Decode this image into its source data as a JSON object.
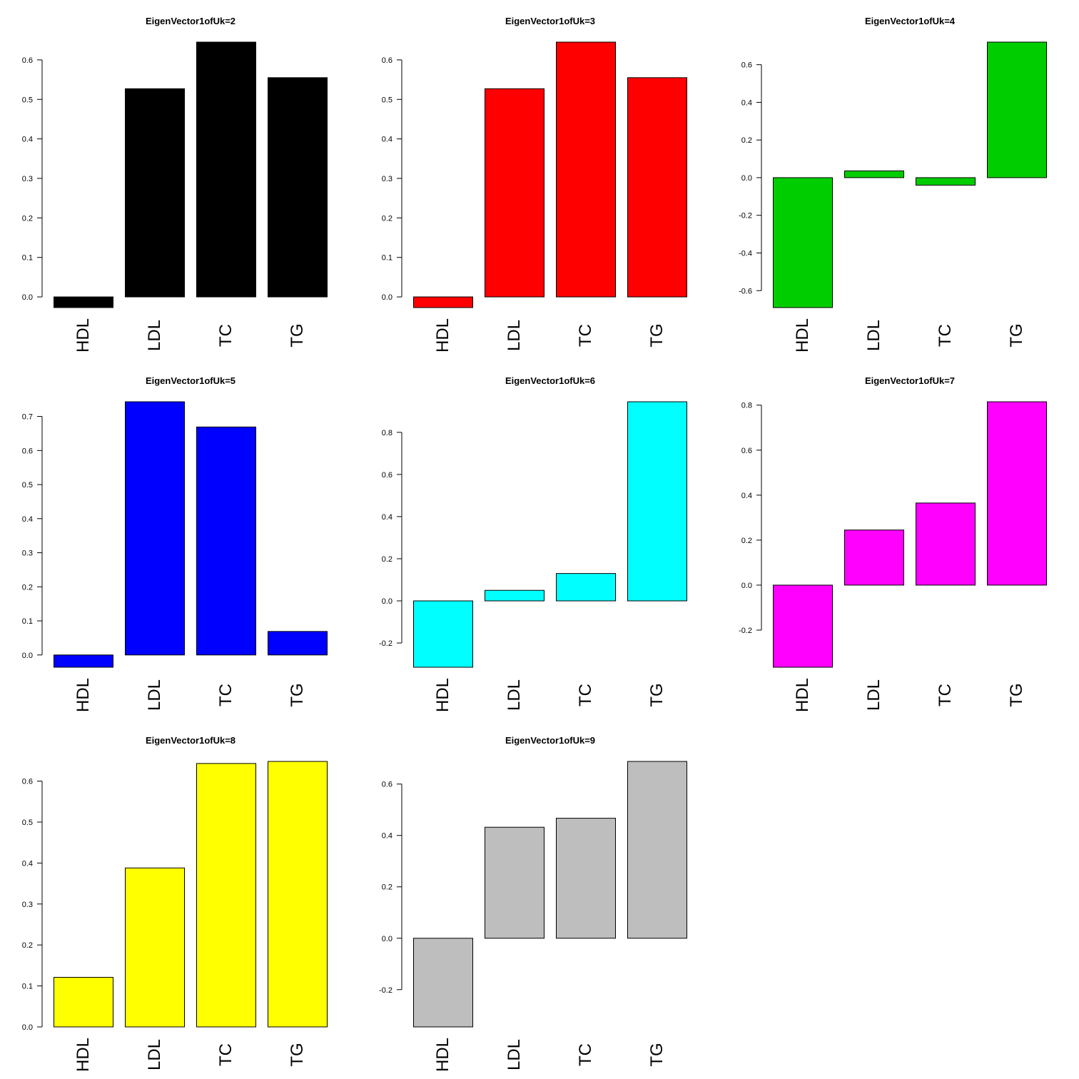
{
  "chart_data": [
    {
      "type": "bar",
      "title": "EigenVector1ofUk=2",
      "categories": [
        "HDL",
        "LDL",
        "TC",
        "TG"
      ],
      "values": [
        -0.027,
        0.527,
        0.645,
        0.555
      ],
      "ylim": [
        -0.027,
        0.645
      ],
      "yticks": [
        0.0,
        0.1,
        0.2,
        0.3,
        0.4,
        0.5,
        0.6
      ],
      "ytick_labels": [
        "0.0",
        "0.1",
        "0.2",
        "0.3",
        "0.4",
        "0.5",
        "0.6"
      ],
      "color": "#000000",
      "grid": false
    },
    {
      "type": "bar",
      "title": "EigenVector1ofUk=3",
      "categories": [
        "HDL",
        "LDL",
        "TC",
        "TG"
      ],
      "values": [
        -0.027,
        0.527,
        0.645,
        0.555
      ],
      "ylim": [
        -0.027,
        0.645
      ],
      "yticks": [
        0.0,
        0.1,
        0.2,
        0.3,
        0.4,
        0.5,
        0.6
      ],
      "ytick_labels": [
        "0.0",
        "0.1",
        "0.2",
        "0.3",
        "0.4",
        "0.5",
        "0.6"
      ],
      "color": "#ff0000",
      "grid": false
    },
    {
      "type": "bar",
      "title": "EigenVector1ofUk=4",
      "categories": [
        "HDL",
        "LDL",
        "TC",
        "TG"
      ],
      "values": [
        -0.69,
        0.036,
        -0.04,
        0.72
      ],
      "ylim": [
        -0.69,
        0.72
      ],
      "yticks": [
        -0.6,
        -0.4,
        -0.2,
        0.0,
        0.2,
        0.4,
        0.6
      ],
      "ytick_labels": [
        "-0.6",
        "-0.4",
        "-0.2",
        "0.0",
        "0.2",
        "0.4",
        "0.6"
      ],
      "color": "#00cd00",
      "grid": false
    },
    {
      "type": "bar",
      "title": "EigenVector1ofUk=5",
      "categories": [
        "HDL",
        "LDL",
        "TC",
        "TG"
      ],
      "values": [
        -0.036,
        0.743,
        0.669,
        0.069
      ],
      "ylim": [
        -0.036,
        0.743
      ],
      "yticks": [
        0.0,
        0.1,
        0.2,
        0.3,
        0.4,
        0.5,
        0.6,
        0.7
      ],
      "ytick_labels": [
        "0.0",
        "0.1",
        "0.2",
        "0.3",
        "0.4",
        "0.5",
        "0.6",
        "0.7"
      ],
      "color": "#0000ff",
      "grid": false
    },
    {
      "type": "bar",
      "title": "EigenVector1ofUk=6",
      "categories": [
        "HDL",
        "LDL",
        "TC",
        "TG"
      ],
      "values": [
        -0.315,
        0.05,
        0.13,
        0.945
      ],
      "ylim": [
        -0.315,
        0.945
      ],
      "yticks": [
        -0.2,
        0.0,
        0.2,
        0.4,
        0.6,
        0.8
      ],
      "ytick_labels": [
        "-0.2",
        "0.0",
        "0.2",
        "0.4",
        "0.6",
        "0.8"
      ],
      "color": "#00ffff",
      "grid": false
    },
    {
      "type": "bar",
      "title": "EigenVector1ofUk=7",
      "categories": [
        "HDL",
        "LDL",
        "TC",
        "TG"
      ],
      "values": [
        -0.365,
        0.245,
        0.365,
        0.815
      ],
      "ylim": [
        -0.365,
        0.815
      ],
      "yticks": [
        -0.2,
        0.0,
        0.2,
        0.4,
        0.6,
        0.8
      ],
      "ytick_labels": [
        "-0.2",
        "0.0",
        "0.2",
        "0.4",
        "0.6",
        "0.8"
      ],
      "color": "#ff00ff",
      "grid": false
    },
    {
      "type": "bar",
      "title": "EigenVector1ofUk=8",
      "categories": [
        "HDL",
        "LDL",
        "TC",
        "TG"
      ],
      "values": [
        0.121,
        0.388,
        0.643,
        0.648
      ],
      "ylim": [
        0.0,
        0.648
      ],
      "yticks": [
        0.0,
        0.1,
        0.2,
        0.3,
        0.4,
        0.5,
        0.6
      ],
      "ytick_labels": [
        "0.0",
        "0.1",
        "0.2",
        "0.3",
        "0.4",
        "0.5",
        "0.6"
      ],
      "color": "#ffff00",
      "grid": false
    },
    {
      "type": "bar",
      "title": "EigenVector1ofUk=9",
      "categories": [
        "HDL",
        "LDL",
        "TC",
        "TG"
      ],
      "values": [
        -0.345,
        0.432,
        0.467,
        0.688
      ],
      "ylim": [
        -0.345,
        0.688
      ],
      "yticks": [
        -0.2,
        0.0,
        0.2,
        0.4,
        0.6
      ],
      "ytick_labels": [
        "-0.2",
        "0.0",
        "0.2",
        "0.4",
        "0.6"
      ],
      "color": "#bebebe",
      "grid": false
    }
  ]
}
